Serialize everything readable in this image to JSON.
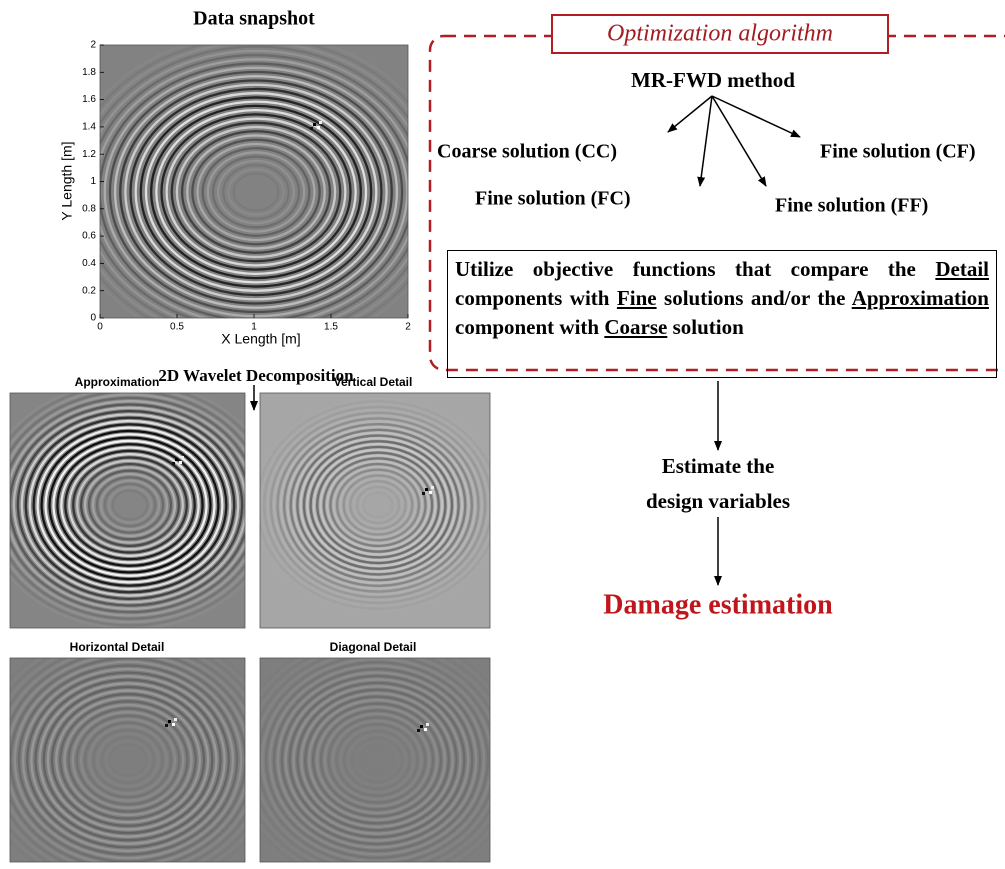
{
  "snapshot": {
    "title": "Data snapshot",
    "x_label": "X Length [m]",
    "y_label": "Y Length [m]",
    "x_ticks": [
      0,
      0.5,
      1,
      1.5,
      2
    ],
    "y_ticks": [
      0,
      0.2,
      0.4,
      0.6,
      0.8,
      1,
      1.2,
      1.4,
      1.6,
      1.8,
      2
    ]
  },
  "decomposition": {
    "label": "2D Wavelet Decomposition",
    "panels": [
      "Approximation",
      "Vertical Detail",
      "Horizontal Detail",
      "Diagonal Detail"
    ]
  },
  "optimization": {
    "title": "Optimization algorithm",
    "method": "MR-FWD method",
    "solutions": [
      "Coarse solution (CC)",
      "Fine solution (CF)",
      "Fine solution (FC)",
      "Fine solution (FF)"
    ],
    "objective": [
      "Utilize objective functions that compare the ",
      "Detail",
      " components with ",
      "Fine",
      " solutions and/or the ",
      "Approximation",
      " component with ",
      "Coarse",
      " solution"
    ]
  },
  "estimate": [
    "Estimate the",
    "design variables"
  ],
  "result": "Damage estimation"
}
